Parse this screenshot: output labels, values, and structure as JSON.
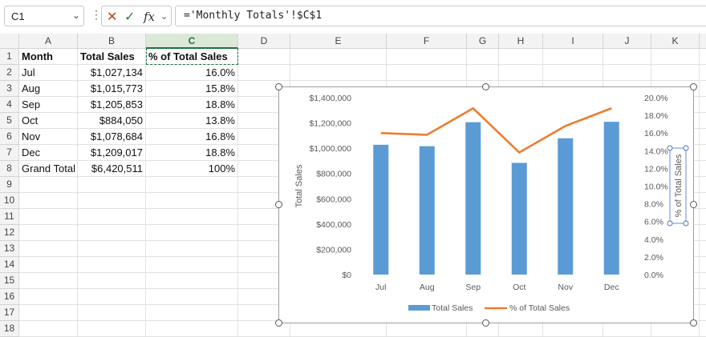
{
  "formula_bar": {
    "name_box": "C1",
    "fx": "fx",
    "formula": "='Monthly Totals'!$C$1"
  },
  "columns": [
    "A",
    "B",
    "C",
    "D",
    "E",
    "F",
    "G",
    "H",
    "I",
    "J",
    "K",
    "L"
  ],
  "rows": [
    "1",
    "2",
    "3",
    "4",
    "5",
    "6",
    "7",
    "8",
    "9",
    "10",
    "11",
    "12",
    "13",
    "14",
    "15",
    "16",
    "17",
    "18"
  ],
  "table": [
    {
      "a": "Month",
      "b": "Total Sales",
      "c": "% of Total Sales"
    },
    {
      "a": "Jul",
      "b": "$1,027,134",
      "c": "16.0%"
    },
    {
      "a": "Aug",
      "b": "$1,015,773",
      "c": "15.8%"
    },
    {
      "a": "Sep",
      "b": "$1,205,853",
      "c": "18.8%"
    },
    {
      "a": "Oct",
      "b": "$884,050",
      "c": "13.8%"
    },
    {
      "a": "Nov",
      "b": "$1,078,684",
      "c": "16.8%"
    },
    {
      "a": "Dec",
      "b": "$1,209,017",
      "c": "18.8%"
    },
    {
      "a": "Grand Total",
      "b": "$6,420,511",
      "c": "100%"
    }
  ],
  "chart_data": {
    "type": "bar",
    "categories": [
      "Jul",
      "Aug",
      "Sep",
      "Oct",
      "Nov",
      "Dec"
    ],
    "series": [
      {
        "name": "Total Sales",
        "type": "bar",
        "axis": "left",
        "color": "#5b9bd5",
        "values": [
          1027134,
          1015773,
          1205853,
          884050,
          1078684,
          1209017
        ]
      },
      {
        "name": "% of Total Sales",
        "type": "line",
        "axis": "right",
        "color": "#ed7d31",
        "values": [
          16.0,
          15.8,
          18.8,
          13.8,
          16.8,
          18.8
        ]
      }
    ],
    "ylabel": "Total Sales",
    "y2label": "% of Total Sales",
    "ylim": [
      0,
      1400000
    ],
    "y2lim": [
      0,
      20
    ],
    "yticks": [
      "$0",
      "$200,000",
      "$400,000",
      "$600,000",
      "$800,000",
      "$1,000,000",
      "$1,200,000",
      "$1,400,000"
    ],
    "y2ticks": [
      "0.0%",
      "2.0%",
      "4.0%",
      "6.0%",
      "8.0%",
      "10.0%",
      "12.0%",
      "14.0%",
      "16.0%",
      "18.0%",
      "20.0%"
    ],
    "legend": "bottom",
    "grid": false
  }
}
